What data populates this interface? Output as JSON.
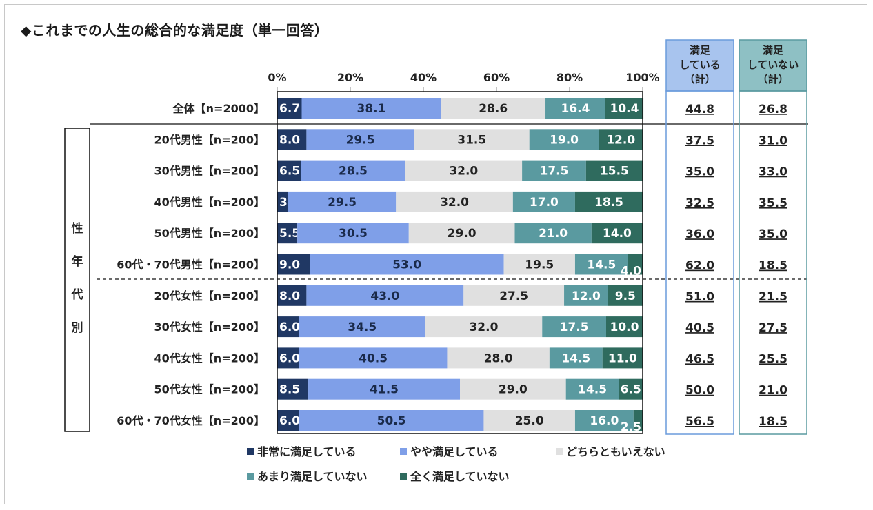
{
  "title": "◆これまでの人生の総合的な満足度（単一回答）",
  "chart_data": {
    "type": "stacked-bar-horizontal",
    "x_ticks": [
      "0%",
      "20%",
      "40%",
      "60%",
      "80%",
      "100%"
    ],
    "xlim": [
      0,
      100
    ],
    "series": [
      {
        "name": "非常に満足している",
        "color": "#203864"
      },
      {
        "name": "やや満足している",
        "color": "#7f9fe8"
      },
      {
        "name": "どちらともいえない",
        "color": "#e0e0e0"
      },
      {
        "name": "あまり満足していない",
        "color": "#5a9aa0"
      },
      {
        "name": "全く満足していない",
        "color": "#2f6b5e"
      }
    ],
    "group_label_chars": [
      "性",
      "年",
      "代",
      "別"
    ],
    "summary_headers": [
      {
        "lines": [
          "満足",
          "している",
          "（計）"
        ],
        "fill": "#a8c4ee",
        "border": "#6a9bdc"
      },
      {
        "lines": [
          "満足",
          "していない",
          "（計）"
        ],
        "fill": "#8ec0c4",
        "border": "#5a9aa0"
      }
    ],
    "rows": [
      {
        "label": "全体【n=2000】",
        "values": [
          6.7,
          38.1,
          28.6,
          16.4,
          10.4
        ],
        "labels": [
          "6.7",
          "38.1",
          "28.6",
          "16.4",
          "10.4"
        ],
        "satisfied": "44.8",
        "unsatisfied": "26.8"
      },
      {
        "label": "20代男性【n=200】",
        "values": [
          8.0,
          29.5,
          31.5,
          19.0,
          12.0
        ],
        "labels": [
          "8.0",
          "29.5",
          "31.5",
          "19.0",
          "12.0"
        ],
        "satisfied": "37.5",
        "unsatisfied": "31.0"
      },
      {
        "label": "30代男性【n=200】",
        "values": [
          6.5,
          28.5,
          32.0,
          17.5,
          15.5
        ],
        "labels": [
          "6.5",
          "28.5",
          "32.0",
          "17.5",
          "15.5"
        ],
        "satisfied": "35.0",
        "unsatisfied": "33.0"
      },
      {
        "label": "40代男性【n=200】",
        "values": [
          3.0,
          29.5,
          32.0,
          17.0,
          18.5
        ],
        "labels": [
          "3.0",
          "29.5",
          "32.0",
          "17.0",
          "18.5"
        ],
        "satisfied": "32.5",
        "unsatisfied": "35.5"
      },
      {
        "label": "50代男性【n=200】",
        "values": [
          5.5,
          30.5,
          29.0,
          21.0,
          14.0
        ],
        "labels": [
          "5.5",
          "30.5",
          "29.0",
          "21.0",
          "14.0"
        ],
        "satisfied": "36.0",
        "unsatisfied": "35.0"
      },
      {
        "label": "60代・70代男性【n=200】",
        "values": [
          9.0,
          53.0,
          19.5,
          14.5,
          4.0
        ],
        "labels": [
          "9.0",
          "53.0",
          "19.5",
          "14.5",
          "4.0"
        ],
        "satisfied": "62.0",
        "unsatisfied": "18.5"
      },
      {
        "label": "20代女性【n=200】",
        "values": [
          8.0,
          43.0,
          27.5,
          12.0,
          9.5
        ],
        "labels": [
          "8.0",
          "43.0",
          "27.5",
          "12.0",
          "9.5"
        ],
        "satisfied": "51.0",
        "unsatisfied": "21.5"
      },
      {
        "label": "30代女性【n=200】",
        "values": [
          6.0,
          34.5,
          32.0,
          17.5,
          10.0
        ],
        "labels": [
          "6.0",
          "34.5",
          "32.0",
          "17.5",
          "10.0"
        ],
        "satisfied": "40.5",
        "unsatisfied": "27.5"
      },
      {
        "label": "40代女性【n=200】",
        "values": [
          6.0,
          40.5,
          28.0,
          14.5,
          11.0
        ],
        "labels": [
          "6.0",
          "40.5",
          "28.0",
          "14.5",
          "11.0"
        ],
        "satisfied": "46.5",
        "unsatisfied": "25.5"
      },
      {
        "label": "50代女性【n=200】",
        "values": [
          8.5,
          41.5,
          29.0,
          14.5,
          6.5
        ],
        "labels": [
          "8.5",
          "41.5",
          "29.0",
          "14.5",
          "6.5"
        ],
        "satisfied": "50.0",
        "unsatisfied": "21.0"
      },
      {
        "label": "60代・70代女性【n=200】",
        "values": [
          6.0,
          50.5,
          25.0,
          16.0,
          2.5
        ],
        "labels": [
          "6.0",
          "50.5",
          "25.0",
          "16.0",
          "2.5"
        ],
        "satisfied": "56.5",
        "unsatisfied": "18.5"
      }
    ],
    "legend": [
      [
        "非常に満足している",
        "やや満足している",
        "どちらともいえない"
      ],
      [
        "あまり満足していない",
        "全く満足していない"
      ]
    ]
  }
}
